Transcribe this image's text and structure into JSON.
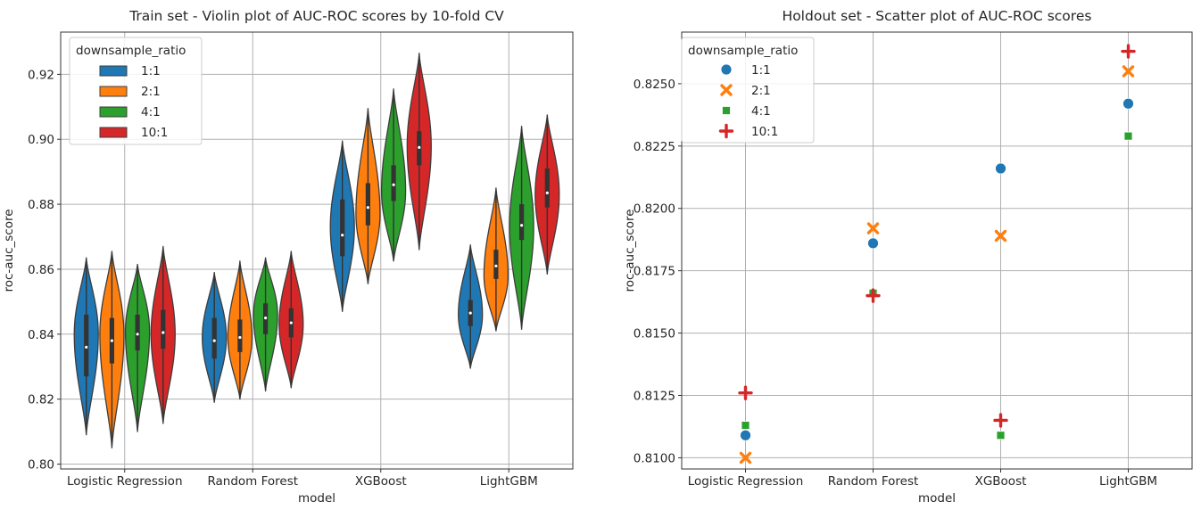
{
  "chart_data": [
    {
      "type": "violin",
      "title": "Train set - Violin plot of AUC-ROC scores by 10-fold CV",
      "xlabel": "model",
      "ylabel": "roc-auc_score",
      "categories": [
        "Logistic Regression",
        "Random Forest",
        "XGBoost",
        "LightGBM"
      ],
      "ylim": [
        0.7985,
        0.933
      ],
      "yticks": [
        0.8,
        0.82,
        0.84,
        0.86,
        0.88,
        0.9,
        0.92
      ],
      "ytick_labels": [
        "0.80",
        "0.82",
        "0.84",
        "0.86",
        "0.88",
        "0.90",
        "0.92"
      ],
      "grid": true,
      "legend": {
        "title": "downsample_ratio",
        "placement": "top-left"
      },
      "series": [
        {
          "name": "1:1",
          "color": "#1f77b4",
          "distributions": [
            {
              "min": 0.809,
              "max": 0.8635,
              "q1": 0.827,
              "median": 0.836,
              "q3": 0.846,
              "widest": 0.84
            },
            {
              "min": 0.819,
              "max": 0.859,
              "q1": 0.8325,
              "median": 0.838,
              "q3": 0.845,
              "widest": 0.839
            },
            {
              "min": 0.847,
              "max": 0.8995,
              "q1": 0.864,
              "median": 0.8705,
              "q3": 0.8815,
              "widest": 0.873
            },
            {
              "min": 0.8295,
              "max": 0.8675,
              "q1": 0.8425,
              "median": 0.8465,
              "q3": 0.8505,
              "widest": 0.846
            }
          ]
        },
        {
          "name": "2:1",
          "color": "#ff7f0e",
          "distributions": [
            {
              "min": 0.805,
              "max": 0.8655,
              "q1": 0.831,
              "median": 0.838,
              "q3": 0.845,
              "widest": 0.84
            },
            {
              "min": 0.82,
              "max": 0.8625,
              "q1": 0.8345,
              "median": 0.839,
              "q3": 0.8445,
              "widest": 0.839
            },
            {
              "min": 0.8555,
              "max": 0.9095,
              "q1": 0.8735,
              "median": 0.879,
              "q3": 0.8865,
              "widest": 0.877
            },
            {
              "min": 0.841,
              "max": 0.885,
              "q1": 0.857,
              "median": 0.861,
              "q3": 0.866,
              "widest": 0.858
            }
          ]
        },
        {
          "name": "4:1",
          "color": "#2ca02c",
          "distributions": [
            {
              "min": 0.81,
              "max": 0.8615,
              "q1": 0.835,
              "median": 0.84,
              "q3": 0.846,
              "widest": 0.841
            },
            {
              "min": 0.8225,
              "max": 0.8635,
              "q1": 0.84,
              "median": 0.845,
              "q3": 0.8495,
              "widest": 0.846
            },
            {
              "min": 0.8625,
              "max": 0.9155,
              "q1": 0.881,
              "median": 0.886,
              "q3": 0.892,
              "widest": 0.884
            },
            {
              "min": 0.8415,
              "max": 0.904,
              "q1": 0.869,
              "median": 0.8735,
              "q3": 0.88,
              "widest": 0.873
            }
          ]
        },
        {
          "name": "10:1",
          "color": "#d62728",
          "distributions": [
            {
              "min": 0.8125,
              "max": 0.867,
              "q1": 0.8355,
              "median": 0.8405,
              "q3": 0.8475,
              "widest": 0.84
            },
            {
              "min": 0.8235,
              "max": 0.8655,
              "q1": 0.839,
              "median": 0.8435,
              "q3": 0.848,
              "widest": 0.843
            },
            {
              "min": 0.866,
              "max": 0.9265,
              "q1": 0.892,
              "median": 0.8975,
              "q3": 0.9025,
              "widest": 0.898
            },
            {
              "min": 0.8585,
              "max": 0.9075,
              "q1": 0.879,
              "median": 0.8835,
              "q3": 0.891,
              "widest": 0.883
            }
          ]
        }
      ]
    },
    {
      "type": "scatter",
      "title": "Holdout set - Scatter plot of AUC-ROC scores",
      "xlabel": "model",
      "ylabel": "roc-auc_score",
      "categories": [
        "Logistic Regression",
        "Random Forest",
        "XGBoost",
        "LightGBM"
      ],
      "ylim": [
        0.80955,
        0.82707
      ],
      "yticks": [
        0.81,
        0.8125,
        0.815,
        0.8175,
        0.82,
        0.8225,
        0.825
      ],
      "ytick_labels": [
        "0.8100",
        "0.8125",
        "0.8150",
        "0.8175",
        "0.8200",
        "0.8225",
        "0.8250"
      ],
      "grid": true,
      "legend": {
        "title": "downsample_ratio",
        "placement": "top-left"
      },
      "series": [
        {
          "name": "1:1",
          "marker": "circle",
          "color": "#1f77b4",
          "values": [
            0.8109,
            0.8186,
            0.8216,
            0.8242
          ]
        },
        {
          "name": "2:1",
          "marker": "x",
          "color": "#ff7f0e",
          "values": [
            0.81,
            0.8192,
            0.8189,
            0.8255
          ]
        },
        {
          "name": "4:1",
          "marker": "square",
          "color": "#2ca02c",
          "values": [
            0.8113,
            0.8166,
            0.8109,
            0.8229
          ]
        },
        {
          "name": "10:1",
          "marker": "plus",
          "color": "#d62728",
          "values": [
            0.8126,
            0.8165,
            0.8115,
            0.8263
          ]
        }
      ]
    }
  ]
}
